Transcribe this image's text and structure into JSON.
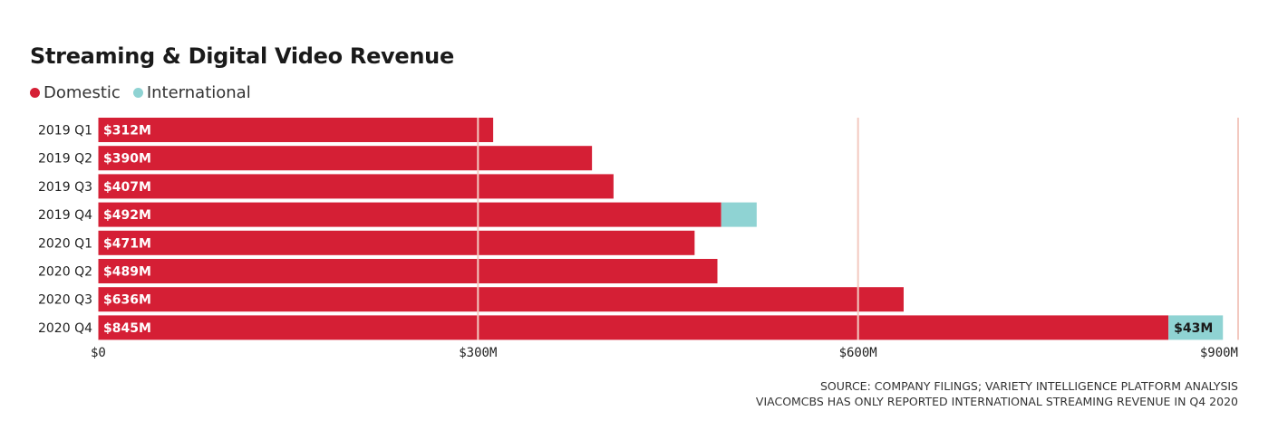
{
  "chart_data": {
    "type": "bar",
    "orientation": "horizontal",
    "stacked": true,
    "title": "Streaming & Digital Video Revenue",
    "categories": [
      "2019 Q1",
      "2019 Q2",
      "2019 Q3",
      "2019 Q4",
      "2020 Q1",
      "2020 Q2",
      "2020 Q3",
      "2020 Q4"
    ],
    "series": [
      {
        "name": "Domestic",
        "color": "#d51f35",
        "values": [
          312,
          390,
          407,
          492,
          471,
          489,
          636,
          845
        ],
        "labels": [
          "$312M",
          "$390M",
          "$407M",
          "$492M",
          "$471M",
          "$489M",
          "$636M",
          "$845M"
        ]
      },
      {
        "name": "International",
        "color": "#8fd3d3",
        "values": [
          0,
          0,
          0,
          28,
          0,
          0,
          0,
          43
        ],
        "labels": [
          "",
          "",
          "",
          "",
          "",
          "",
          "",
          "$43M"
        ]
      }
    ],
    "xlim": [
      0,
      900
    ],
    "xticks": [
      0,
      300,
      600,
      900
    ],
    "xtick_labels": [
      "$0",
      "$300M",
      "$600M",
      "$900M"
    ],
    "legend": "top-left",
    "grid": true
  },
  "footer": {
    "source": "SOURCE: COMPANY FILINGS; VARIETY INTELLIGENCE PLATFORM ANALYSIS",
    "note": "VIACOMCBS HAS ONLY REPORTED INTERNATIONAL STREAMING REVENUE IN Q4 2020"
  }
}
